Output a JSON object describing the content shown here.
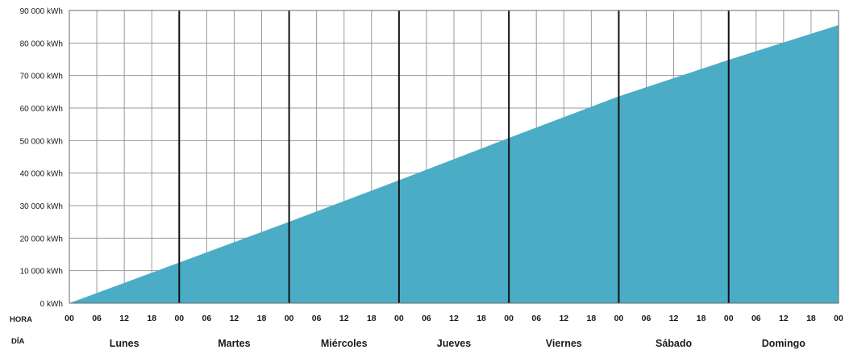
{
  "chart_data": {
    "type": "area",
    "title": "",
    "xlabel": "",
    "ylabel": "",
    "y_unit": "kWh",
    "ylim": [
      0,
      90000
    ],
    "y_ticks": [
      "0 kWh",
      "10 000 kWh",
      "20 000 kWh",
      "30 000 kWh",
      "40 000 kWh",
      "50 000 kWh",
      "60 000 kWh",
      "70 000 kWh",
      "80 000 kWh",
      "90 000 kWh"
    ],
    "x_row_label": "HORA",
    "day_row_label": "DÍA",
    "hour_ticks": [
      "00",
      "06",
      "12",
      "18",
      "00",
      "06",
      "12",
      "18",
      "00",
      "06",
      "12",
      "18",
      "00",
      "06",
      "12",
      "18",
      "00",
      "06",
      "12",
      "18",
      "00",
      "06",
      "12",
      "18",
      "00",
      "06",
      "12",
      "18",
      "00"
    ],
    "days": [
      "Lunes",
      "Martes",
      "Miércoles",
      "Jueves",
      "Viernes",
      "Sábado",
      "Domingo"
    ],
    "x_hours": [
      0,
      24,
      48,
      72,
      96,
      120,
      144,
      168
    ],
    "values": [
      0,
      12500,
      25000,
      37800,
      50800,
      63600,
      74800,
      85500
    ],
    "fill_color": "#4bacc6",
    "grid": true,
    "legend": "none"
  }
}
